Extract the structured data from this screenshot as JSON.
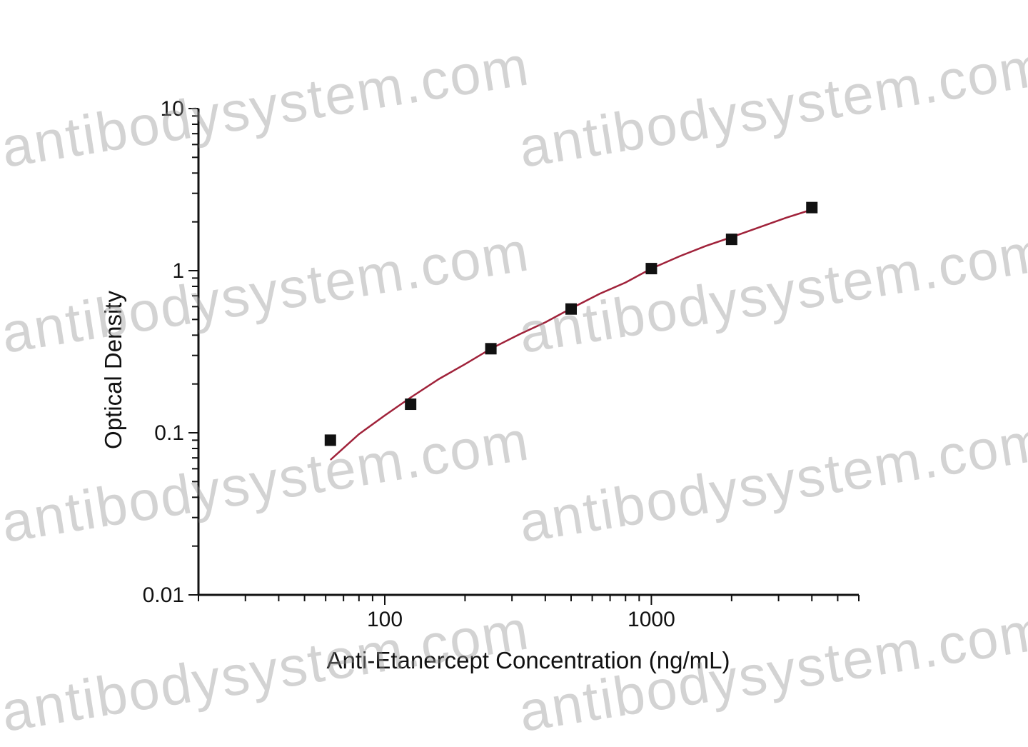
{
  "chart_data": {
    "type": "scatter",
    "xlabel": "Anti-Etanercept Concentration (ng/mL)",
    "ylabel": "Optical Density",
    "x_scale": "log",
    "y_scale": "log",
    "xlim": [
      20,
      6000
    ],
    "ylim": [
      0.01,
      10
    ],
    "x_tick_labels": [
      "100",
      "1000"
    ],
    "y_tick_labels": [
      "0.01",
      "0.1",
      "1",
      "10"
    ],
    "grid": false,
    "series": [
      {
        "kind": "points",
        "x": [
          62.5,
          125,
          250,
          500,
          1000,
          2000,
          4000
        ],
        "y": [
          0.09,
          0.15,
          0.33,
          0.58,
          1.03,
          1.56,
          2.45
        ],
        "color": "#111111"
      },
      {
        "kind": "fit",
        "x": [
          62.5,
          80,
          100,
          125,
          160,
          200,
          250,
          320,
          400,
          500,
          640,
          800,
          1000,
          1280,
          1600,
          2000,
          2560,
          3200,
          4000
        ],
        "y": [
          0.068,
          0.098,
          0.128,
          0.165,
          0.215,
          0.265,
          0.33,
          0.405,
          0.48,
          0.585,
          0.72,
          0.845,
          1.03,
          1.23,
          1.42,
          1.61,
          1.86,
          2.12,
          2.38
        ],
        "color": "#a0223a"
      }
    ]
  },
  "watermark": {
    "text": "antibodysystem.com"
  }
}
